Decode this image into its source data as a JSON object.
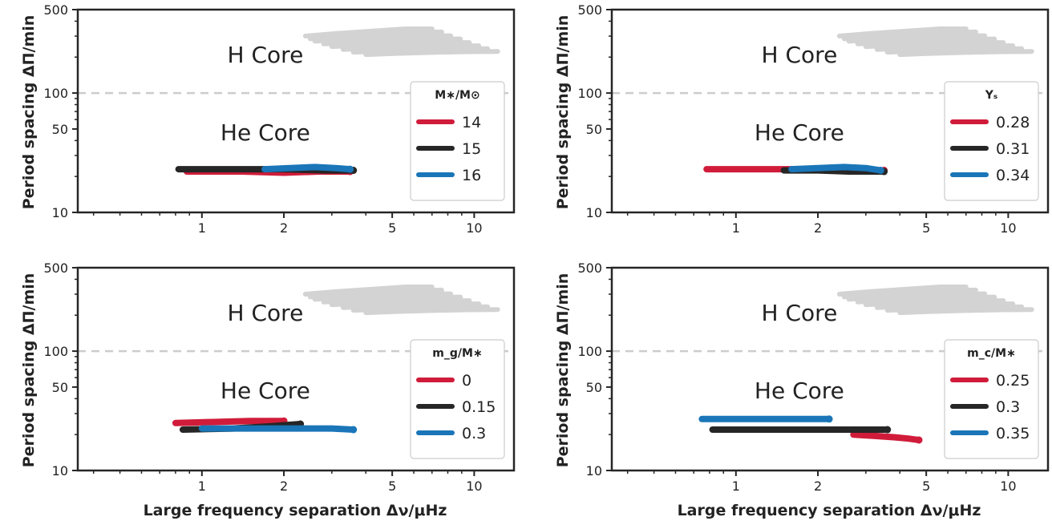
{
  "y_label": "Period spacing ΔΠ/min",
  "x_label": "Large frequency separation Δν/μHz",
  "colors": {
    "red": "#d01c3a",
    "black": "#262626",
    "blue": "#1a76b8",
    "grey": "#d3d3d3",
    "dashed": "#cccccc"
  },
  "chart_data": [
    {
      "type": "line",
      "x_scale": "log",
      "y_scale": "log",
      "xlim": [
        0.35,
        14
      ],
      "ylim": [
        10,
        500
      ],
      "x_ticks": [
        "1",
        "2",
        "5",
        "10"
      ],
      "y_ticks": [
        "10",
        "50",
        "100",
        "500"
      ],
      "reference_line": {
        "y": 100,
        "style": "dashed"
      },
      "annotations": [
        "H Core",
        "He Core"
      ],
      "legend": {
        "title": "M∗/M⊙",
        "position": "right"
      },
      "series": [
        {
          "name": "14",
          "color": "red",
          "x": [
            0.88,
            1.4,
            2.0,
            2.7,
            3.5
          ],
          "y": [
            22,
            22,
            21.5,
            22,
            22
          ]
        },
        {
          "name": "15",
          "color": "black",
          "x": [
            0.82,
            1.3,
            2.0,
            2.8,
            3.6
          ],
          "y": [
            23,
            23,
            23,
            22.5,
            22.5
          ]
        },
        {
          "name": "16",
          "color": "blue",
          "x": [
            1.7,
            2.1,
            2.6,
            3.1,
            3.5
          ],
          "y": [
            23,
            23.5,
            24,
            23.5,
            23
          ]
        }
      ]
    },
    {
      "type": "line",
      "x_scale": "log",
      "y_scale": "log",
      "xlim": [
        0.35,
        14
      ],
      "ylim": [
        10,
        500
      ],
      "x_ticks": [
        "1",
        "2",
        "5",
        "10"
      ],
      "y_ticks": [
        "10",
        "50",
        "100",
        "500"
      ],
      "reference_line": {
        "y": 100,
        "style": "dashed"
      },
      "annotations": [
        "H Core",
        "He Core"
      ],
      "legend": {
        "title": "Yₛ",
        "position": "right"
      },
      "series": [
        {
          "name": "0.28",
          "color": "red",
          "x": [
            0.78,
            1.2,
            1.8,
            2.6,
            3.5
          ],
          "y": [
            23,
            23,
            23,
            22.5,
            22.5
          ]
        },
        {
          "name": "0.31",
          "color": "black",
          "x": [
            1.5,
            2.0,
            2.6,
            3.2,
            3.5
          ],
          "y": [
            22.5,
            22.5,
            22,
            22,
            22
          ]
        },
        {
          "name": "0.34",
          "color": "blue",
          "x": [
            1.6,
            2.0,
            2.5,
            3.0,
            3.4
          ],
          "y": [
            23,
            23.5,
            24,
            23.5,
            22.5
          ]
        }
      ]
    },
    {
      "type": "line",
      "x_scale": "log",
      "y_scale": "log",
      "xlim": [
        0.35,
        14
      ],
      "ylim": [
        10,
        500
      ],
      "x_ticks": [
        "1",
        "2",
        "5",
        "10"
      ],
      "y_ticks": [
        "10",
        "50",
        "100",
        "500"
      ],
      "reference_line": {
        "y": 100,
        "style": "dashed"
      },
      "annotations": [
        "H Core",
        "He Core"
      ],
      "legend": {
        "title": "m_g/M∗",
        "position": "right"
      },
      "series": [
        {
          "name": "0",
          "color": "red",
          "x": [
            0.8,
            1.1,
            1.5,
            2.0
          ],
          "y": [
            25,
            25.5,
            26,
            26
          ]
        },
        {
          "name": "0.15",
          "color": "black",
          "x": [
            0.85,
            1.3,
            1.8,
            2.3
          ],
          "y": [
            22,
            22.5,
            23.5,
            24.5
          ]
        },
        {
          "name": "0.3",
          "color": "blue",
          "x": [
            1.0,
            1.6,
            2.3,
            3.0,
            3.6
          ],
          "y": [
            22.5,
            22.5,
            22.5,
            22.5,
            22
          ]
        }
      ]
    },
    {
      "type": "line",
      "x_scale": "log",
      "y_scale": "log",
      "xlim": [
        0.35,
        14
      ],
      "ylim": [
        10,
        500
      ],
      "x_ticks": [
        "1",
        "2",
        "5",
        "10"
      ],
      "y_ticks": [
        "10",
        "50",
        "100",
        "500"
      ],
      "reference_line": {
        "y": 100,
        "style": "dashed"
      },
      "annotations": [
        "H Core",
        "He Core"
      ],
      "legend": {
        "title": "m_c/M∗",
        "position": "right"
      },
      "series": [
        {
          "name": "0.25",
          "color": "red",
          "x": [
            2.7,
            3.2,
            3.8,
            4.3,
            4.7
          ],
          "y": [
            20,
            19.5,
            19,
            18.5,
            18
          ]
        },
        {
          "name": "0.3",
          "color": "black",
          "x": [
            0.82,
            1.4,
            2.2,
            3.0,
            3.6
          ],
          "y": [
            22,
            22,
            22,
            22,
            22
          ]
        },
        {
          "name": "0.35",
          "color": "blue",
          "x": [
            0.75,
            1.1,
            1.6,
            2.2
          ],
          "y": [
            27,
            27,
            27,
            27
          ]
        }
      ]
    }
  ]
}
